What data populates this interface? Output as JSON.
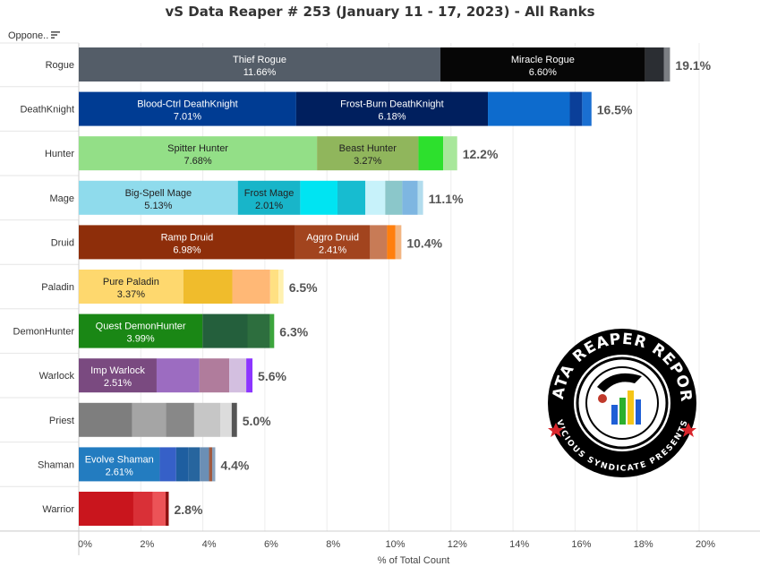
{
  "field_label": "Oppone..",
  "icons": {
    "sort": "sort-descending-icon",
    "logo": "data-reaper-report-logo"
  },
  "logo_text": {
    "top": "DATA REAPER REPORT",
    "bottom": "VICIOUS SYNDICATE PRESENTS"
  },
  "chart_data": {
    "type": "bar",
    "orientation": "horizontal",
    "stacked": true,
    "title": "vS Data Reaper # 253 (January 11 - 17, 2023) - All Ranks",
    "xlabel": "% of Total Count",
    "ylabel": "",
    "xlim": [
      0,
      21
    ],
    "xticks": [
      "0%",
      "2%",
      "4%",
      "6%",
      "8%",
      "10%",
      "12%",
      "14%",
      "16%",
      "18%",
      "20%"
    ],
    "grid": "vertical",
    "legend": "none",
    "categories": [
      "Rogue",
      "DeathKnight",
      "Hunter",
      "Mage",
      "Druid",
      "Paladin",
      "DemonHunter",
      "Warlock",
      "Priest",
      "Shaman",
      "Warrior"
    ],
    "totals": [
      "19.1%",
      "16.5%",
      "12.2%",
      "11.1%",
      "10.4%",
      "6.5%",
      "6.3%",
      "5.6%",
      "5.0%",
      "4.4%",
      "2.8%"
    ],
    "rows": [
      {
        "class": "Rogue",
        "segments": [
          {
            "name": "Thief Rogue",
            "label": "11.66%",
            "value": 11.66,
            "color": "#545d68"
          },
          {
            "name": "Miracle Rogue",
            "label": "6.60%",
            "value": 6.6,
            "color": "#060606"
          },
          {
            "value": 0.6,
            "color": "#2b2e33"
          },
          {
            "value": 0.2,
            "color": "#7c7f84"
          }
        ]
      },
      {
        "class": "DeathKnight",
        "segments": [
          {
            "name": "Blood-Ctrl DeathKnight",
            "label": "7.01%",
            "value": 7.01,
            "color": "#003c93"
          },
          {
            "name": "Frost-Burn DeathKnight",
            "label": "6.18%",
            "value": 6.18,
            "color": "#001f5e"
          },
          {
            "value": 2.64,
            "color": "#0d6bcd"
          },
          {
            "value": 0.4,
            "color": "#0a3f99"
          },
          {
            "value": 0.3,
            "color": "#1a6fd1"
          }
        ]
      },
      {
        "class": "Hunter",
        "segments": [
          {
            "name": "Spitter Hunter",
            "label": "7.68%",
            "value": 7.68,
            "color": "#93df87"
          },
          {
            "name": "Beast Hunter",
            "label": "3.27%",
            "value": 3.27,
            "color": "#90b65c"
          },
          {
            "value": 0.8,
            "color": "#2de02d"
          },
          {
            "value": 0.45,
            "color": "#a8e79b"
          }
        ]
      },
      {
        "class": "Mage",
        "segments": [
          {
            "name": "Big-Spell Mage",
            "label": "5.13%",
            "value": 5.13,
            "color": "#8fdbec"
          },
          {
            "name": "Frost Mage",
            "label": "2.01%",
            "value": 2.01,
            "color": "#18b5c9"
          },
          {
            "value": 1.2,
            "color": "#00e4f2"
          },
          {
            "value": 0.9,
            "color": "#17bcd0"
          },
          {
            "value": 0.64,
            "color": "#c7f2fa"
          },
          {
            "value": 0.55,
            "color": "#8bc7ca"
          },
          {
            "value": 0.5,
            "color": "#7eb6e1"
          },
          {
            "value": 0.17,
            "color": "#b2dced"
          }
        ]
      },
      {
        "class": "Druid",
        "segments": [
          {
            "name": "Ramp Druid",
            "label": "6.98%",
            "value": 6.98,
            "color": "#8e2e0a"
          },
          {
            "name": "Aggro Druid",
            "label": "2.41%",
            "value": 2.41,
            "color": "#a2441e"
          },
          {
            "value": 0.55,
            "color": "#c87b56"
          },
          {
            "value": 0.27,
            "color": "#ff7f0e"
          },
          {
            "value": 0.19,
            "color": "#f2b582"
          }
        ]
      },
      {
        "class": "Paladin",
        "segments": [
          {
            "name": "Pure Paladin",
            "label": "3.37%",
            "value": 3.37,
            "color": "#fed86e"
          },
          {
            "name": "",
            "label": "",
            "value": 1.58,
            "color": "#f0bc2c"
          },
          {
            "value": 1.22,
            "color": "#ffb876"
          },
          {
            "value": 0.27,
            "color": "#ffe082"
          },
          {
            "value": 0.16,
            "color": "#fff1b0"
          }
        ]
      },
      {
        "class": "DemonHunter",
        "segments": [
          {
            "name": "Quest DemonHunter",
            "label": "3.99%",
            "value": 3.99,
            "color": "#1a8715"
          },
          {
            "value": 1.45,
            "color": "#245f3c"
          },
          {
            "value": 0.72,
            "color": "#2d6e3e"
          },
          {
            "value": 0.14,
            "color": "#3ca53c"
          }
        ]
      },
      {
        "class": "Warlock",
        "segments": [
          {
            "name": "Imp Warlock",
            "label": "2.51%",
            "value": 2.51,
            "color": "#7a4a80"
          },
          {
            "value": 1.38,
            "color": "#9c6cc1"
          },
          {
            "value": 0.96,
            "color": "#b07c9c"
          },
          {
            "value": 0.55,
            "color": "#d3bfe0"
          },
          {
            "value": 0.2,
            "color": "#8c35ff"
          }
        ]
      },
      {
        "class": "Priest",
        "segments": [
          {
            "value": 1.72,
            "color": "#7e7e7e"
          },
          {
            "value": 1.09,
            "color": "#a5a5a5"
          },
          {
            "value": 0.91,
            "color": "#888888"
          },
          {
            "value": 0.84,
            "color": "#c6c6c6"
          },
          {
            "value": 0.37,
            "color": "#dcdcdc"
          },
          {
            "value": 0.17,
            "color": "#555555"
          }
        ]
      },
      {
        "class": "Shaman",
        "segments": [
          {
            "name": "Evolve Shaman",
            "label": "2.61%",
            "value": 2.61,
            "color": "#237cc0"
          },
          {
            "value": 0.53,
            "color": "#3660c8"
          },
          {
            "value": 0.4,
            "color": "#1e5ea0"
          },
          {
            "value": 0.36,
            "color": "#27659e"
          },
          {
            "value": 0.3,
            "color": "#6b8fb5"
          },
          {
            "value": 0.1,
            "color": "#a05a40"
          },
          {
            "value": 0.1,
            "color": "#8aa2bc"
          }
        ]
      },
      {
        "class": "Warrior",
        "segments": [
          {
            "value": 1.76,
            "color": "#c9151d"
          },
          {
            "value": 0.62,
            "color": "#d93037"
          },
          {
            "value": 0.42,
            "color": "#ec5357"
          },
          {
            "value": 0.1,
            "color": "#8e1010"
          }
        ]
      }
    ]
  }
}
